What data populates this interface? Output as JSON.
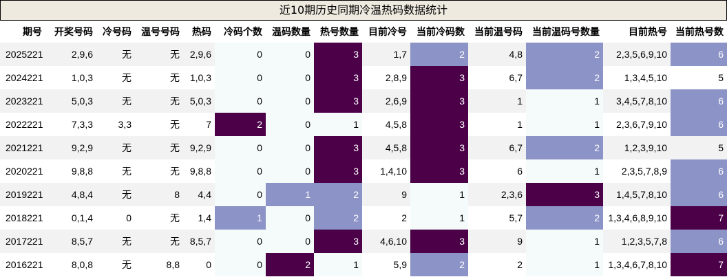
{
  "title": "近10期历史同期冷温热码数据统计",
  "headers": [
    "期号",
    "开奖号码",
    "冷号码",
    "温号号码",
    "热码",
    "冷码个数",
    "温码数量",
    "热号数量",
    "目前冷号",
    "当前冷码数",
    "当前温号码",
    "当前温码号数量",
    "目前热号",
    "当前热号数"
  ],
  "colors": {
    "light": "#f5fbfb",
    "mid": "#8c93c7",
    "dark": "#4b0048",
    "stripe": "#f2f2f2",
    "title_bg": "#eeeadf"
  },
  "rows": [
    [
      "2025221",
      "2,9,6",
      "无",
      "无",
      "2,9,6",
      "0",
      "0",
      "3",
      "1,7",
      "2",
      "4,8",
      "2",
      "2,3,5,6,9,10",
      "6"
    ],
    [
      "2024221",
      "1,0,3",
      "无",
      "无",
      "1,0,3",
      "0",
      "0",
      "3",
      "2,8,9",
      "3",
      "6,7",
      "2",
      "1,3,4,5,10",
      "5"
    ],
    [
      "2023221",
      "5,0,3",
      "无",
      "无",
      "5,0,3",
      "0",
      "0",
      "3",
      "2,6,9",
      "3",
      "1",
      "1",
      "3,4,5,7,8,10",
      "6"
    ],
    [
      "2022221",
      "7,3,3",
      "3,3",
      "无",
      "7",
      "2",
      "0",
      "1",
      "4,5,8",
      "3",
      "1",
      "1",
      "2,3,6,7,9,10",
      "6"
    ],
    [
      "2021221",
      "9,2,9",
      "无",
      "无",
      "9,2,9",
      "0",
      "0",
      "3",
      "4,5,8",
      "3",
      "6,7",
      "2",
      "1,2,3,9,10",
      "5"
    ],
    [
      "2020221",
      "9,8,8",
      "无",
      "无",
      "9,8,8",
      "0",
      "0",
      "3",
      "1,4,10",
      "3",
      "6",
      "1",
      "2,3,5,7,8,9",
      "6"
    ],
    [
      "2019221",
      "4,8,4",
      "无",
      "8",
      "4,4",
      "0",
      "1",
      "2",
      "9",
      "1",
      "2,3,6",
      "3",
      "1,4,5,7,8,10",
      "6"
    ],
    [
      "2018221",
      "0,1,4",
      "0",
      "无",
      "1,4",
      "1",
      "0",
      "2",
      "2",
      "1",
      "5,7",
      "2",
      "1,3,4,6,8,9,10",
      "7"
    ],
    [
      "2017221",
      "8,5,7",
      "无",
      "无",
      "8,5,7",
      "0",
      "0",
      "3",
      "4,6,10",
      "3",
      "9",
      "1",
      "1,2,3,5,7,8",
      "6"
    ],
    [
      "2016221",
      "8,0,8",
      "无",
      "8,8",
      "0",
      "0",
      "2",
      "1",
      "5,9",
      "2",
      "2",
      "1",
      "1,3,4,6,7,8,10",
      "7"
    ]
  ]
}
